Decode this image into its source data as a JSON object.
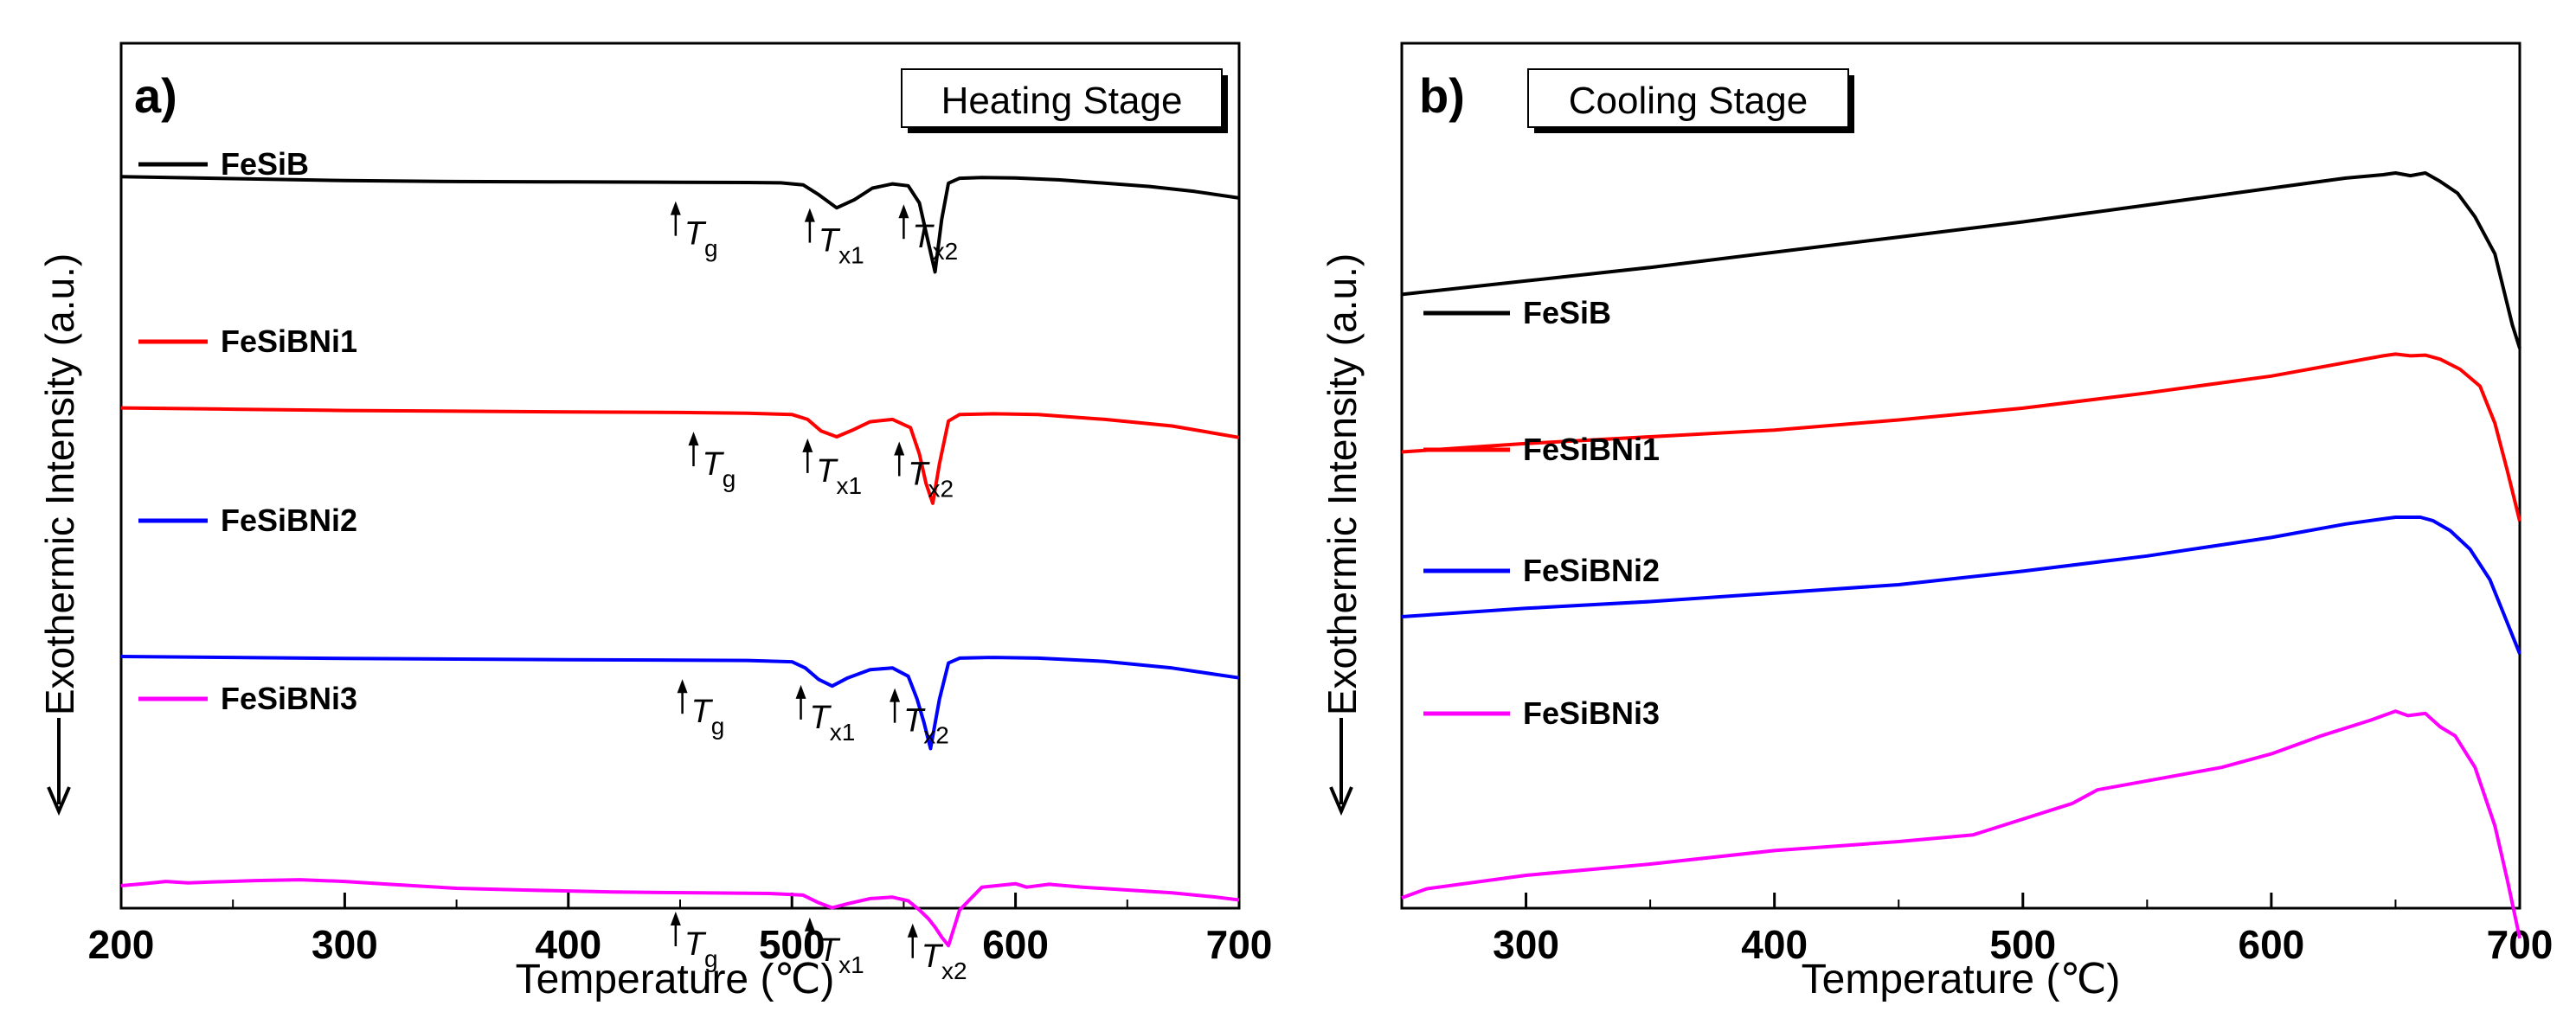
{
  "chart_data": [
    {
      "type": "line",
      "panel_label": "a)",
      "stage_label": "Heating Stage",
      "xlabel": "Temperature (℃)",
      "ylabel": "Exothermic Intensity (a.u.)",
      "xlim": [
        200,
        700
      ],
      "xticks": [
        "200",
        "300",
        "400",
        "500",
        "600",
        "700"
      ],
      "ylim": [
        0,
        10
      ],
      "series": [
        {
          "name": "FeSiB",
          "color": "#000000",
          "x": [
            200,
            250,
            300,
            350,
            400,
            450,
            480,
            495,
            505,
            512,
            520,
            528,
            536,
            545,
            552,
            557,
            561,
            564,
            567,
            570,
            575,
            585,
            600,
            620,
            640,
            660,
            680,
            700
          ],
          "y": [
            9.1,
            9.04,
            8.98,
            8.95,
            8.94,
            8.93,
            8.92,
            8.91,
            8.85,
            8.55,
            8.15,
            8.4,
            8.75,
            8.88,
            8.82,
            8.3,
            7.1,
            6.2,
            7.8,
            8.9,
            9.05,
            9.07,
            9.06,
            9.0,
            8.9,
            8.8,
            8.65,
            8.45
          ]
        },
        {
          "name": "FeSiBNi1",
          "color": "#ff0000",
          "x": [
            200,
            250,
            300,
            350,
            400,
            450,
            480,
            500,
            507,
            513,
            520,
            527,
            535,
            545,
            553,
            557,
            560,
            563,
            566,
            570,
            575,
            590,
            610,
            640,
            670,
            700
          ],
          "y": [
            6.8,
            6.76,
            6.72,
            6.7,
            6.68,
            6.66,
            6.64,
            6.6,
            6.45,
            6.1,
            5.92,
            6.12,
            6.38,
            6.45,
            6.2,
            5.4,
            4.5,
            3.9,
            5.1,
            6.4,
            6.6,
            6.62,
            6.6,
            6.45,
            6.25,
            5.9
          ]
        },
        {
          "name": "FeSiBNi2",
          "color": "#0000ff",
          "x": [
            200,
            250,
            300,
            350,
            400,
            450,
            480,
            500,
            506,
            512,
            518,
            525,
            535,
            545,
            552,
            556,
            559,
            562,
            566,
            570,
            575,
            590,
            610,
            640,
            670,
            700
          ],
          "y": [
            4.5,
            4.47,
            4.44,
            4.42,
            4.4,
            4.39,
            4.38,
            4.34,
            4.15,
            3.8,
            3.6,
            3.85,
            4.1,
            4.15,
            3.9,
            3.2,
            2.5,
            1.7,
            3.2,
            4.3,
            4.45,
            4.47,
            4.45,
            4.35,
            4.15,
            3.85
          ]
        },
        {
          "name": "FeSiBNi3",
          "color": "#ff00ff",
          "x": [
            200,
            210,
            220,
            230,
            240,
            260,
            280,
            300,
            320,
            350,
            380,
            420,
            460,
            490,
            505,
            512,
            518,
            525,
            535,
            545,
            552,
            557,
            561,
            564,
            567,
            570,
            575,
            585,
            600,
            605,
            615,
            630,
            650,
            670,
            690,
            700
          ],
          "y": [
            2.15,
            2.22,
            2.3,
            2.25,
            2.28,
            2.33,
            2.36,
            2.3,
            2.2,
            2.06,
            2.0,
            1.93,
            1.9,
            1.88,
            1.82,
            1.55,
            1.38,
            1.52,
            1.7,
            1.75,
            1.62,
            1.3,
            1.0,
            0.7,
            0.35,
            0.05,
            1.3,
            2.1,
            2.22,
            2.1,
            2.2,
            2.1,
            2.0,
            1.9,
            1.75,
            1.65
          ]
        }
      ],
      "annotations": [
        {
          "series": "FeSiB",
          "x": 448,
          "label": "T",
          "sub": "g"
        },
        {
          "series": "FeSiB",
          "x": 508,
          "label": "T",
          "sub": "x1"
        },
        {
          "series": "FeSiB",
          "x": 550,
          "label": "T",
          "sub": "x2"
        },
        {
          "series": "FeSiBNi1",
          "x": 456,
          "label": "T",
          "sub": "g"
        },
        {
          "series": "FeSiBNi1",
          "x": 507,
          "label": "T",
          "sub": "x1"
        },
        {
          "series": "FeSiBNi1",
          "x": 548,
          "label": "T",
          "sub": "x2"
        },
        {
          "series": "FeSiBNi2",
          "x": 451,
          "label": "T",
          "sub": "g"
        },
        {
          "series": "FeSiBNi2",
          "x": 504,
          "label": "T",
          "sub": "x1"
        },
        {
          "series": "FeSiBNi2",
          "x": 546,
          "label": "T",
          "sub": "x2"
        },
        {
          "series": "FeSiBNi3",
          "x": 448,
          "label": "T",
          "sub": "g"
        },
        {
          "series": "FeSiBNi3",
          "x": 508,
          "label": "T",
          "sub": "x1"
        },
        {
          "series": "FeSiBNi3",
          "x": 554,
          "label": "T",
          "sub": "x2"
        }
      ]
    },
    {
      "type": "line",
      "panel_label": "b)",
      "stage_label": "Cooling Stage",
      "xlabel": "Temperature (℃)",
      "ylabel": "Exothermic Intensity (a.u.)",
      "xlim": [
        250,
        700
      ],
      "xticks": [
        "300",
        "400",
        "500",
        "600",
        "700"
      ],
      "ylim": [
        0,
        10
      ],
      "series": [
        {
          "name": "FeSiB",
          "color": "#000000",
          "x": [
            250,
            300,
            350,
            400,
            450,
            500,
            550,
            600,
            630,
            645,
            650,
            656,
            662,
            668,
            675,
            682,
            690,
            697,
            700
          ],
          "y": [
            6.4,
            6.8,
            7.2,
            7.65,
            8.1,
            8.55,
            9.05,
            9.55,
            9.85,
            9.95,
            10.0,
            9.92,
            10.0,
            9.75,
            9.4,
            8.7,
            7.6,
            5.5,
            4.8
          ]
        },
        {
          "name": "FeSiBNi1",
          "color": "#ff0000",
          "x": [
            250,
            300,
            350,
            400,
            450,
            500,
            550,
            600,
            630,
            645,
            650,
            656,
            662,
            668,
            676,
            684,
            690,
            695,
            700
          ],
          "y": [
            4.55,
            4.8,
            5.0,
            5.2,
            5.5,
            5.85,
            6.3,
            6.8,
            7.2,
            7.4,
            7.45,
            7.4,
            7.42,
            7.3,
            7.0,
            6.5,
            5.4,
            4.0,
            2.5
          ]
        },
        {
          "name": "FeSiBNi2",
          "color": "#0000ff",
          "x": [
            250,
            300,
            350,
            400,
            450,
            500,
            550,
            600,
            630,
            645,
            650,
            660,
            665,
            672,
            680,
            688,
            694,
            700
          ],
          "y": [
            3.0,
            3.25,
            3.45,
            3.7,
            3.95,
            4.35,
            4.8,
            5.35,
            5.75,
            5.9,
            5.95,
            5.95,
            5.85,
            5.55,
            5.0,
            4.1,
            3.0,
            1.9
          ]
        },
        {
          "name": "FeSiBNi3",
          "color": "#ff00ff",
          "x": [
            250,
            260,
            300,
            350,
            400,
            450,
            480,
            500,
            520,
            530,
            550,
            580,
            600,
            620,
            640,
            650,
            655,
            662,
            668,
            674,
            682,
            690,
            695,
            700
          ],
          "y": [
            1.0,
            1.2,
            1.5,
            1.75,
            2.05,
            2.25,
            2.4,
            2.75,
            3.1,
            3.4,
            3.6,
            3.9,
            4.2,
            4.6,
            4.95,
            5.15,
            5.05,
            5.1,
            4.8,
            4.6,
            3.9,
            2.6,
            1.4,
            0.1
          ]
        }
      ],
      "annotations": []
    }
  ]
}
